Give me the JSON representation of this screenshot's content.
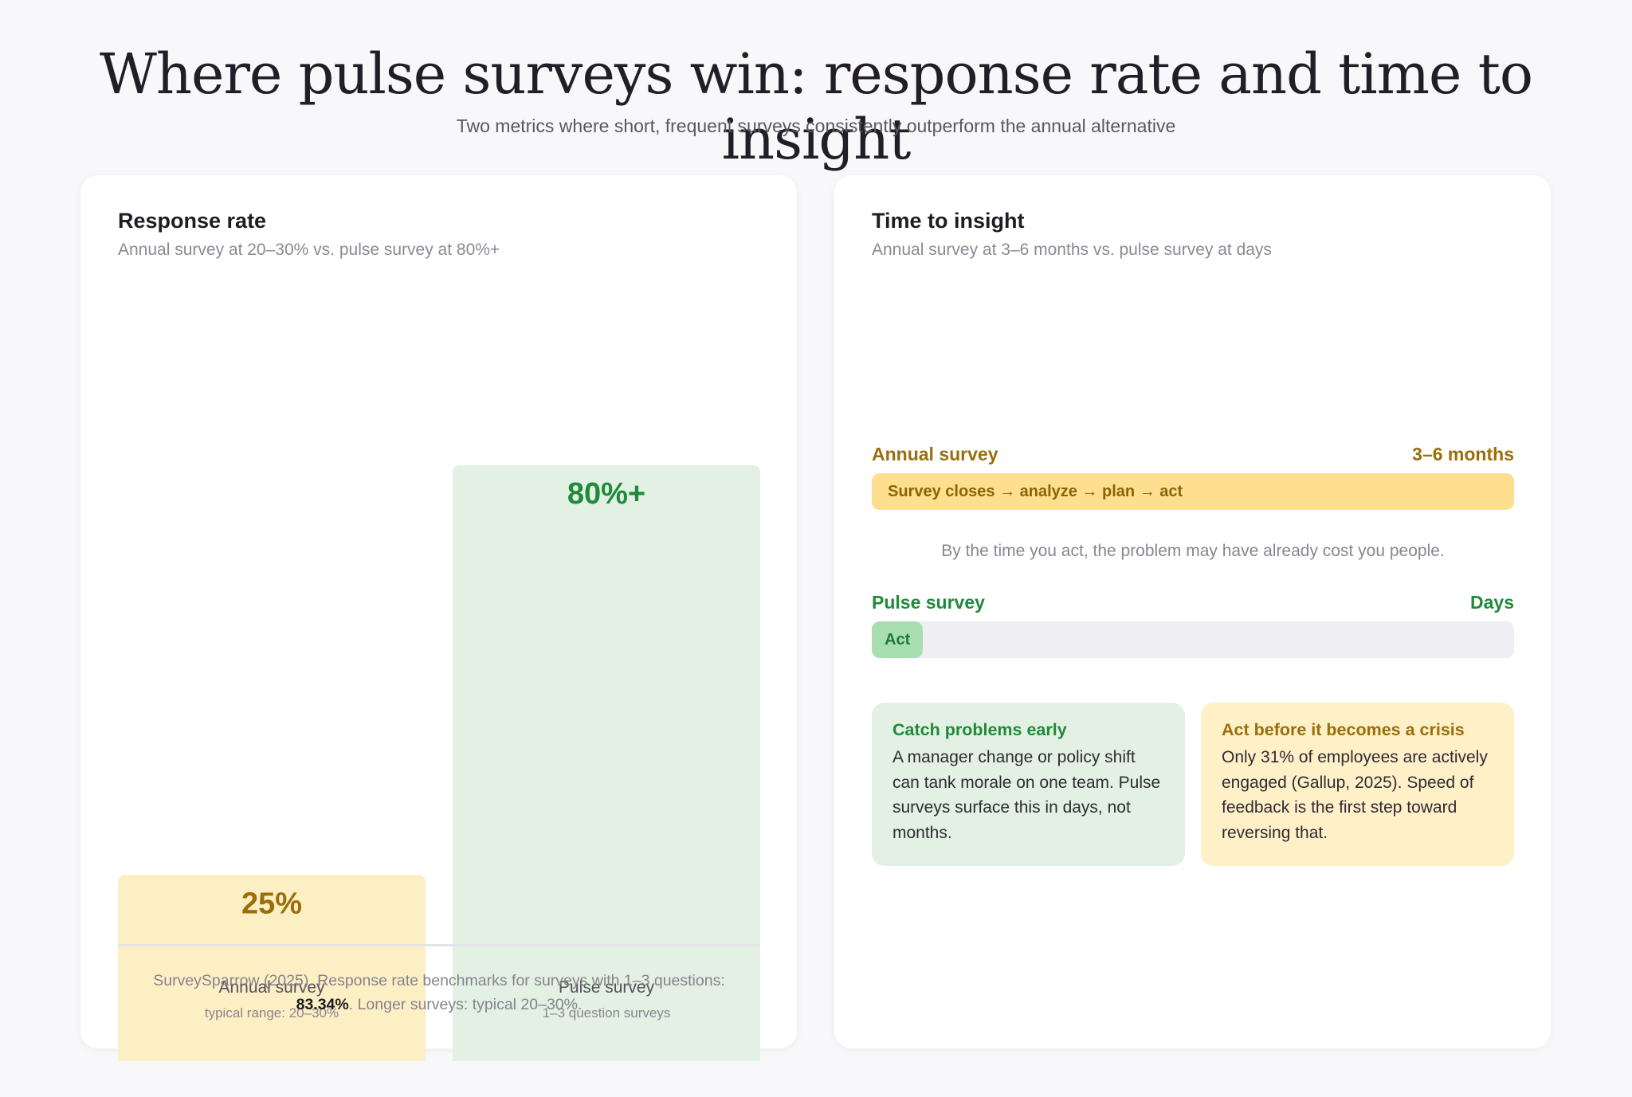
{
  "header": {
    "title": "Where pulse surveys win: response rate and time to insight",
    "subtitle": "Two metrics where short, frequent surveys consistently outperform the annual alternative"
  },
  "colors": {
    "annual_fill": "#fdefc4",
    "annual_text": "#9a6e08",
    "pulse_fill": "#e2f1e3",
    "pulse_text": "#1f8a3a"
  },
  "response_card": {
    "title": "Response rate",
    "subtitle": "Annual survey at 20–30% vs. pulse survey at 80%+",
    "source_prefix": "SurveySparrow (2025). Response rate benchmarks for surveys with 1–3 questions:",
    "source_highlight": "83.34%",
    "source_suffix": ". Longer surveys: typical 20–30%."
  },
  "chart_data": [
    {
      "type": "bar",
      "title": "Response rate",
      "categories": [
        "Annual survey",
        "Pulse survey"
      ],
      "notes": [
        "typical range: 20–30%",
        "1–3 question surveys"
      ],
      "values": [
        25,
        80
      ],
      "data_labels": [
        "25%",
        "80%+"
      ],
      "ylim": [
        0,
        100
      ],
      "grid": false
    },
    {
      "type": "bar",
      "title": "Time to insight",
      "categories": [
        "Annual survey",
        "Pulse survey"
      ],
      "value_labels": [
        "3–6 months",
        "Days"
      ],
      "bar_texts": [
        "Survey closes → analyze → plan → act",
        "Act"
      ],
      "fill_fraction": [
        1.0,
        0.08
      ]
    }
  ],
  "insight_card": {
    "title": "Time to insight",
    "subtitle": "Annual survey at 3–6 months vs. pulse survey at days",
    "annual_label": "Annual survey",
    "annual_value": "3–6 months",
    "annual_bar": "Survey closes → analyze → plan → act",
    "note": "By the time you act, the problem may have already cost you people.",
    "pulse_label": "Pulse survey",
    "pulse_value": "Days",
    "pulse_bar": "Act",
    "callouts": [
      {
        "title": "Catch problems early",
        "body": "A manager change or policy shift can tank morale on one team. Pulse surveys surface this in days, not months."
      },
      {
        "title": "Act before it becomes a crisis",
        "body": "Only 31% of employees are actively engaged (Gallup, 2025). Speed of feedback is the first step toward reversing that."
      }
    ]
  }
}
